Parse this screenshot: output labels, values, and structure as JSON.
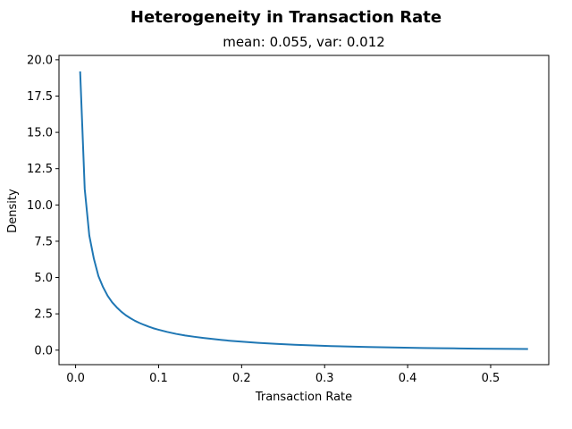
{
  "chart_data": {
    "type": "line",
    "suptitle": "Heterogeneity in Transaction Rate",
    "title": "mean: 0.055, var: 0.012",
    "xlabel": "Transaction Rate",
    "ylabel": "Density",
    "xlim": [
      -0.02,
      0.57
    ],
    "ylim": [
      -1.0,
      20.3
    ],
    "xticks": [
      0.0,
      0.1,
      0.2,
      0.3,
      0.4,
      0.5
    ],
    "xtick_labels": [
      "0.0",
      "0.1",
      "0.2",
      "0.3",
      "0.4",
      "0.5"
    ],
    "yticks": [
      0.0,
      2.5,
      5.0,
      7.5,
      10.0,
      12.5,
      15.0,
      17.5,
      20.0
    ],
    "ytick_labels": [
      "0.0",
      "2.5",
      "5.0",
      "7.5",
      "10.0",
      "12.5",
      "15.0",
      "17.5",
      "20.0"
    ],
    "grid": false,
    "series": [
      {
        "color": "#1f77b4",
        "x": [
          0.0055,
          0.011,
          0.0165,
          0.022,
          0.0275,
          0.033,
          0.0385,
          0.044,
          0.0495,
          0.055,
          0.0605,
          0.066,
          0.0715,
          0.077,
          0.0825,
          0.088,
          0.0935,
          0.099,
          0.11,
          0.121,
          0.132,
          0.143,
          0.154,
          0.165,
          0.176,
          0.187,
          0.198,
          0.22,
          0.242,
          0.264,
          0.286,
          0.308,
          0.33,
          0.352,
          0.374,
          0.396,
          0.418,
          0.44,
          0.462,
          0.484,
          0.506,
          0.528,
          0.545
        ],
        "y": [
          19.2,
          11.1,
          7.9,
          6.3,
          5.1,
          4.35,
          3.75,
          3.3,
          2.95,
          2.65,
          2.4,
          2.2,
          2.02,
          1.87,
          1.74,
          1.62,
          1.51,
          1.42,
          1.26,
          1.12,
          1.01,
          0.92,
          0.84,
          0.77,
          0.7,
          0.64,
          0.59,
          0.5,
          0.43,
          0.37,
          0.32,
          0.28,
          0.245,
          0.215,
          0.19,
          0.168,
          0.148,
          0.131,
          0.117,
          0.104,
          0.093,
          0.083,
          0.076
        ]
      }
    ]
  }
}
